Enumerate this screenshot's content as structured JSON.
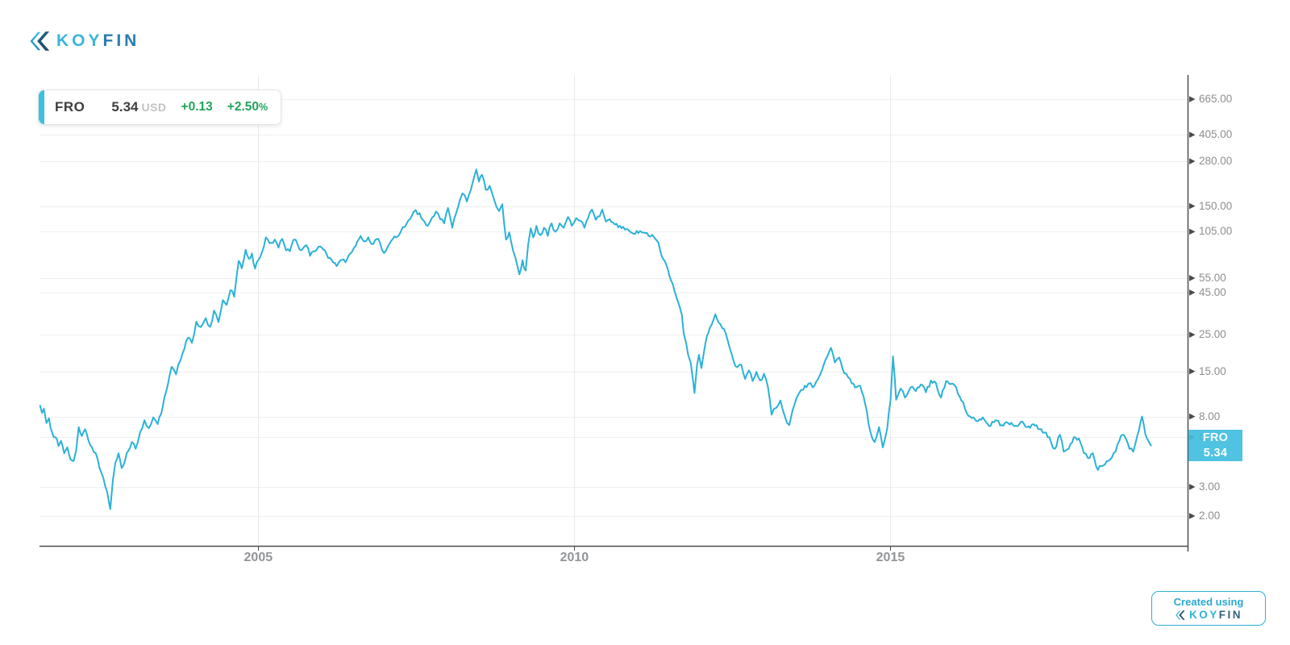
{
  "brand": {
    "koy": "KOY",
    "fin": "FIN"
  },
  "legend": {
    "symbol": "FRO",
    "price": "5.34",
    "currency": "USD",
    "change": "+0.13",
    "change_pct": "+2.50",
    "pct_sign": "%"
  },
  "price_tag": {
    "symbol": "FRO",
    "price": "5.34"
  },
  "badge": {
    "line1": "Created using",
    "koy": "KOY",
    "fin": "FIN"
  },
  "colors": {
    "line": "#2BB1D7",
    "accent_cyan": "#41BEDF",
    "legend_stripe": "#3EC0E1",
    "positive_green": "#1FA25C",
    "axis_line": "#4D4D4D",
    "grid_line": "#EFEFEF",
    "label_gray": "#8E8E8E",
    "logo_cyan": "#3BB5DA",
    "logo_blue": "#2B7CB0"
  },
  "chart_data": {
    "type": "line",
    "title": "",
    "xlabel": "",
    "ylabel": "",
    "grid": true,
    "y_scale": "log",
    "legend_position": "top-left",
    "xlim": [
      2001.54,
      2019.7
    ],
    "ylim": [
      1.32,
      932
    ],
    "x_ticks": [
      2005,
      2010,
      2015
    ],
    "y_tick_values": [
      665,
      405,
      280,
      150,
      105,
      55,
      45,
      25,
      15,
      8,
      6,
      3,
      2
    ],
    "last_price": 5.34,
    "series": [
      {
        "name": "FRO",
        "color": "#2BB1D7",
        "points": [
          [
            2001.55,
            9.3
          ],
          [
            2001.58,
            8.4
          ],
          [
            2001.61,
            8.9
          ],
          [
            2001.65,
            7.3
          ],
          [
            2001.69,
            7.8
          ],
          [
            2001.74,
            6.4
          ],
          [
            2001.79,
            6.0
          ],
          [
            2001.84,
            5.3
          ],
          [
            2001.88,
            5.7
          ],
          [
            2001.93,
            4.8
          ],
          [
            2001.98,
            5.2
          ],
          [
            2002.03,
            4.4
          ],
          [
            2002.08,
            4.3
          ],
          [
            2002.12,
            5.0
          ],
          [
            2002.16,
            6.9
          ],
          [
            2002.21,
            6.1
          ],
          [
            2002.26,
            6.7
          ],
          [
            2002.31,
            5.8
          ],
          [
            2002.37,
            5.2
          ],
          [
            2002.43,
            4.8
          ],
          [
            2002.49,
            3.9
          ],
          [
            2002.55,
            3.4
          ],
          [
            2002.61,
            2.8
          ],
          [
            2002.66,
            2.2
          ],
          [
            2002.7,
            3.3
          ],
          [
            2002.74,
            4.2
          ],
          [
            2002.79,
            4.8
          ],
          [
            2002.84,
            3.9
          ],
          [
            2002.89,
            4.3
          ],
          [
            2002.95,
            5.0
          ],
          [
            2003.0,
            5.6
          ],
          [
            2003.06,
            5.1
          ],
          [
            2003.13,
            6.4
          ],
          [
            2003.2,
            7.6
          ],
          [
            2003.27,
            6.8
          ],
          [
            2003.34,
            7.9
          ],
          [
            2003.41,
            7.2
          ],
          [
            2003.49,
            9.2
          ],
          [
            2003.57,
            12.5
          ],
          [
            2003.63,
            16.0
          ],
          [
            2003.7,
            14.4
          ],
          [
            2003.77,
            17.5
          ],
          [
            2003.83,
            20.5
          ],
          [
            2003.89,
            24.0
          ],
          [
            2003.95,
            22.3
          ],
          [
            2004.02,
            30.0
          ],
          [
            2004.09,
            27.8
          ],
          [
            2004.17,
            31.5
          ],
          [
            2004.24,
            27.9
          ],
          [
            2004.3,
            35.0
          ],
          [
            2004.37,
            29.8
          ],
          [
            2004.44,
            40.5
          ],
          [
            2004.5,
            37.9
          ],
          [
            2004.56,
            46.5
          ],
          [
            2004.62,
            42.4
          ],
          [
            2004.69,
            70.0
          ],
          [
            2004.74,
            63.0
          ],
          [
            2004.8,
            81.5
          ],
          [
            2004.85,
            72.0
          ],
          [
            2004.9,
            77.5
          ],
          [
            2004.95,
            62.8
          ],
          [
            2005.0,
            70.5
          ],
          [
            2005.06,
            79.0
          ],
          [
            2005.12,
            97.0
          ],
          [
            2005.18,
            89.5
          ],
          [
            2005.26,
            94.0
          ],
          [
            2005.32,
            84.0
          ],
          [
            2005.38,
            95.0
          ],
          [
            2005.44,
            81.0
          ],
          [
            2005.5,
            80.0
          ],
          [
            2005.56,
            94.0
          ],
          [
            2005.62,
            88.5
          ],
          [
            2005.68,
            81.0
          ],
          [
            2005.76,
            87.0
          ],
          [
            2005.82,
            75.0
          ],
          [
            2005.9,
            80.0
          ],
          [
            2006.0,
            84.5
          ],
          [
            2006.08,
            77.0
          ],
          [
            2006.16,
            71.0
          ],
          [
            2006.24,
            65.0
          ],
          [
            2006.3,
            70.5
          ],
          [
            2006.38,
            68.5
          ],
          [
            2006.46,
            77.5
          ],
          [
            2006.54,
            86.0
          ],
          [
            2006.62,
            99.0
          ],
          [
            2006.68,
            91.5
          ],
          [
            2006.74,
            97.0
          ],
          [
            2006.82,
            88.5
          ],
          [
            2006.9,
            95.0
          ],
          [
            2006.96,
            81.0
          ],
          [
            2007.02,
            80.5
          ],
          [
            2007.1,
            92.0
          ],
          [
            2007.18,
            97.0
          ],
          [
            2007.25,
            104
          ],
          [
            2007.32,
            112
          ],
          [
            2007.4,
            125
          ],
          [
            2007.49,
            142
          ],
          [
            2007.58,
            127
          ],
          [
            2007.68,
            114
          ],
          [
            2007.75,
            128
          ],
          [
            2007.81,
            139
          ],
          [
            2007.88,
            125
          ],
          [
            2007.94,
            118
          ],
          [
            2008.0,
            146
          ],
          [
            2008.07,
            111
          ],
          [
            2008.16,
            148
          ],
          [
            2008.23,
            179
          ],
          [
            2008.3,
            160
          ],
          [
            2008.39,
            207
          ],
          [
            2008.45,
            250
          ],
          [
            2008.49,
            211
          ],
          [
            2008.54,
            232
          ],
          [
            2008.6,
            188
          ],
          [
            2008.66,
            199
          ],
          [
            2008.71,
            174
          ],
          [
            2008.77,
            148
          ],
          [
            2008.81,
            140
          ],
          [
            2008.86,
            154
          ],
          [
            2008.92,
            94
          ],
          [
            2008.97,
            104
          ],
          [
            2009.03,
            81
          ],
          [
            2009.07,
            72.5
          ],
          [
            2009.13,
            58
          ],
          [
            2009.18,
            70.5
          ],
          [
            2009.23,
            61
          ],
          [
            2009.27,
            88
          ],
          [
            2009.31,
            110
          ],
          [
            2009.35,
            97
          ],
          [
            2009.4,
            114
          ],
          [
            2009.46,
            100
          ],
          [
            2009.52,
            111
          ],
          [
            2009.58,
            99
          ],
          [
            2009.64,
            118
          ],
          [
            2009.7,
            105
          ],
          [
            2009.77,
            118
          ],
          [
            2009.83,
            111
          ],
          [
            2009.9,
            129
          ],
          [
            2009.96,
            114
          ],
          [
            2010.03,
            127
          ],
          [
            2010.1,
            122
          ],
          [
            2010.16,
            111
          ],
          [
            2010.22,
            128
          ],
          [
            2010.28,
            143
          ],
          [
            2010.34,
            124
          ],
          [
            2010.4,
            130
          ],
          [
            2010.44,
            143
          ],
          [
            2010.5,
            121
          ],
          [
            2010.56,
            125
          ],
          [
            2010.64,
            116
          ],
          [
            2010.72,
            114
          ],
          [
            2010.8,
            108
          ],
          [
            2010.88,
            105
          ],
          [
            2010.96,
            102
          ],
          [
            2011.04,
            106
          ],
          [
            2011.12,
            103
          ],
          [
            2011.2,
            98
          ],
          [
            2011.27,
            96
          ],
          [
            2011.33,
            90
          ],
          [
            2011.38,
            75
          ],
          [
            2011.43,
            70
          ],
          [
            2011.48,
            62
          ],
          [
            2011.53,
            53
          ],
          [
            2011.58,
            46.5
          ],
          [
            2011.62,
            41.5
          ],
          [
            2011.66,
            37.5
          ],
          [
            2011.7,
            33
          ],
          [
            2011.73,
            25.5
          ],
          [
            2011.77,
            22
          ],
          [
            2011.8,
            18.9
          ],
          [
            2011.84,
            16.9
          ],
          [
            2011.87,
            13.9
          ],
          [
            2011.9,
            11.1
          ],
          [
            2011.94,
            16.3
          ],
          [
            2011.97,
            18.9
          ],
          [
            2012.01,
            15.7
          ],
          [
            2012.07,
            21.8
          ],
          [
            2012.12,
            25.6
          ],
          [
            2012.17,
            28.6
          ],
          [
            2012.23,
            33.2
          ],
          [
            2012.28,
            29.7
          ],
          [
            2012.34,
            27.4
          ],
          [
            2012.4,
            25
          ],
          [
            2012.46,
            20.6
          ],
          [
            2012.52,
            17.2
          ],
          [
            2012.58,
            15.9
          ],
          [
            2012.64,
            16.5
          ],
          [
            2012.7,
            13.5
          ],
          [
            2012.76,
            15.2
          ],
          [
            2012.82,
            13.1
          ],
          [
            2012.88,
            14.9
          ],
          [
            2012.94,
            13.2
          ],
          [
            2013.0,
            14.5
          ],
          [
            2013.06,
            12.2
          ],
          [
            2013.12,
            8.2
          ],
          [
            2013.19,
            9.0
          ],
          [
            2013.26,
            10.0
          ],
          [
            2013.33,
            8.0
          ],
          [
            2013.4,
            7.1
          ],
          [
            2013.48,
            9.4
          ],
          [
            2013.55,
            11.0
          ],
          [
            2013.62,
            11.6
          ],
          [
            2013.7,
            12.6
          ],
          [
            2013.77,
            12.0
          ],
          [
            2013.85,
            13.4
          ],
          [
            2013.92,
            15.4
          ],
          [
            2014.0,
            18.4
          ],
          [
            2014.06,
            20.8
          ],
          [
            2014.12,
            17.0
          ],
          [
            2014.19,
            18.2
          ],
          [
            2014.27,
            14.6
          ],
          [
            2014.36,
            13.5
          ],
          [
            2014.44,
            12.0
          ],
          [
            2014.52,
            12.3
          ],
          [
            2014.6,
            9.5
          ],
          [
            2014.68,
            6.5
          ],
          [
            2014.75,
            5.6
          ],
          [
            2014.82,
            6.9
          ],
          [
            2014.88,
            5.2
          ],
          [
            2014.95,
            6.8
          ],
          [
            2015.0,
            10.0
          ],
          [
            2015.04,
            18.5
          ],
          [
            2015.09,
            10.1
          ],
          [
            2015.16,
            11.8
          ],
          [
            2015.23,
            10.4
          ],
          [
            2015.32,
            12.0
          ],
          [
            2015.4,
            11.4
          ],
          [
            2015.48,
            12.5
          ],
          [
            2015.56,
            11.2
          ],
          [
            2015.64,
            13.2
          ],
          [
            2015.72,
            12.7
          ],
          [
            2015.8,
            10.4
          ],
          [
            2015.88,
            13.1
          ],
          [
            2015.96,
            12.6
          ],
          [
            2016.04,
            12.0
          ],
          [
            2016.12,
            10.0
          ],
          [
            2016.18,
            8.9
          ],
          [
            2016.26,
            8.0
          ],
          [
            2016.36,
            7.5
          ],
          [
            2016.46,
            7.9
          ],
          [
            2016.56,
            7.0
          ],
          [
            2016.66,
            7.6
          ],
          [
            2016.76,
            7.1
          ],
          [
            2016.86,
            7.3
          ],
          [
            2016.96,
            7.0
          ],
          [
            2017.06,
            7.4
          ],
          [
            2017.16,
            6.9
          ],
          [
            2017.26,
            7.2
          ],
          [
            2017.36,
            6.7
          ],
          [
            2017.46,
            6.4
          ],
          [
            2017.54,
            5.6
          ],
          [
            2017.6,
            5.1
          ],
          [
            2017.68,
            6.2
          ],
          [
            2017.74,
            4.9
          ],
          [
            2017.82,
            5.1
          ],
          [
            2017.9,
            6.0
          ],
          [
            2017.98,
            5.9
          ],
          [
            2018.06,
            4.8
          ],
          [
            2018.12,
            4.5
          ],
          [
            2018.2,
            4.8
          ],
          [
            2018.28,
            3.8
          ],
          [
            2018.34,
            4.0
          ],
          [
            2018.42,
            4.3
          ],
          [
            2018.5,
            4.5
          ],
          [
            2018.56,
            4.9
          ],
          [
            2018.62,
            5.7
          ],
          [
            2018.67,
            6.2
          ],
          [
            2018.72,
            5.9
          ],
          [
            2018.78,
            5.1
          ],
          [
            2018.84,
            4.9
          ],
          [
            2018.88,
            5.6
          ],
          [
            2018.93,
            6.6
          ],
          [
            2018.98,
            8.0
          ],
          [
            2019.03,
            6.3
          ],
          [
            2019.08,
            5.7
          ],
          [
            2019.12,
            5.34
          ]
        ]
      }
    ]
  }
}
